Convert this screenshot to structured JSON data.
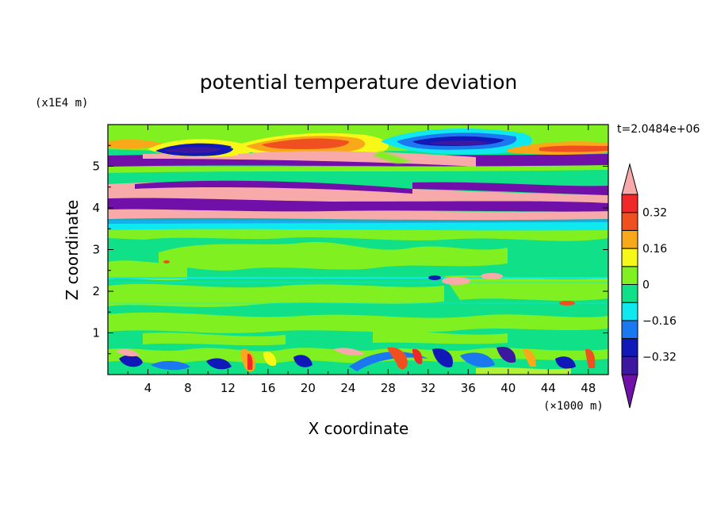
{
  "chart_data": {
    "type": "heatmap",
    "title": "potential temperature deviation",
    "xlabel": "X coordinate",
    "ylabel": "Z coordinate",
    "x_unit": "(×1000 m)",
    "y_unit": "(x1E4 m)",
    "time_label": "t=2.0484e+06",
    "xlim": [
      0,
      50
    ],
    "ylim": [
      0,
      6
    ],
    "x_ticks": [
      4,
      8,
      12,
      16,
      20,
      24,
      28,
      32,
      36,
      40,
      44,
      48
    ],
    "y_ticks": [
      1,
      2,
      3,
      4,
      5
    ],
    "colorbar": {
      "levels": [
        -0.4,
        -0.32,
        -0.24,
        -0.16,
        -0.08,
        0,
        0.08,
        0.16,
        0.24,
        0.32,
        0.4
      ],
      "labels": [
        "0.32",
        "0.16",
        "0",
        "−0.16",
        "−0.32"
      ],
      "label_values": [
        0.32,
        0.16,
        0,
        -0.16,
        -0.32
      ],
      "colors": [
        "#7010a8",
        "#3c18a0",
        "#1018b8",
        "#1c78f0",
        "#10e8f0",
        "#10e088",
        "#80f020",
        "#f8f818",
        "#f8a818",
        "#f05020",
        "#f02828",
        "#f8aaaa"
      ],
      "extend": "both"
    },
    "bands": [
      {
        "z": [
          0.0,
          0.65
        ],
        "level": "mixed"
      },
      {
        "z": [
          0.65,
          3.6
        ],
        "level": 0
      },
      {
        "z": [
          3.6,
          3.75
        ],
        "level": -0.16
      },
      {
        "z": [
          3.75,
          4.05
        ],
        "level": 0.4
      },
      {
        "z": [
          4.05,
          4.3
        ],
        "level": -0.4
      },
      {
        "z": [
          4.3,
          4.75
        ],
        "level": 0.4
      },
      {
        "z": [
          4.75,
          5.15
        ],
        "level": 0.08
      },
      {
        "z": [
          5.15,
          5.35
        ],
        "level": -0.4
      },
      {
        "z": [
          5.35,
          6.0
        ],
        "level": 0.08
      }
    ]
  }
}
